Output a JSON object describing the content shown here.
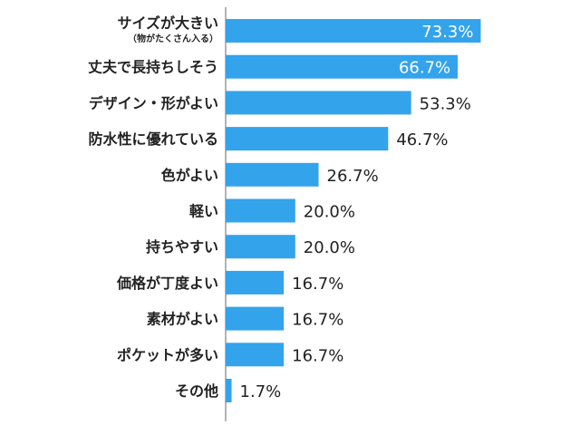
{
  "chart_data": {
    "type": "bar",
    "orientation": "horizontal",
    "categories": [
      "サイズが大きい",
      "丈夫で長持ちしそう",
      "デザイン・形がよい",
      "防水性に優れている",
      "色がよい",
      "軽い",
      "持ちやすい",
      "価格が丁度よい",
      "素材がよい",
      "ポケットが多い",
      "その他"
    ],
    "category_notes": [
      "（物がたくさん入る）",
      "",
      "",
      "",
      "",
      "",
      "",
      "",
      "",
      "",
      ""
    ],
    "values": [
      73.3,
      66.7,
      53.3,
      46.7,
      26.7,
      20.0,
      20.0,
      16.7,
      16.7,
      16.7,
      1.7
    ],
    "value_labels": [
      "73.3%",
      "66.7%",
      "53.3%",
      "46.7%",
      "26.7%",
      "20.0%",
      "20.0%",
      "16.7%",
      "16.7%",
      "16.7%",
      "1.7%"
    ],
    "label_inside_bar": [
      true,
      true,
      false,
      false,
      false,
      false,
      false,
      false,
      false,
      false,
      false
    ],
    "xlim": [
      0,
      100
    ],
    "title": "",
    "xlabel": "",
    "ylabel": "",
    "grid": false,
    "legend": "none",
    "colors": {
      "bar": "#33a3ec",
      "axis": "#9a9a9a",
      "category_text": "#222222",
      "value_text_outside": "#222222",
      "value_text_inside": "#ffffff"
    }
  }
}
